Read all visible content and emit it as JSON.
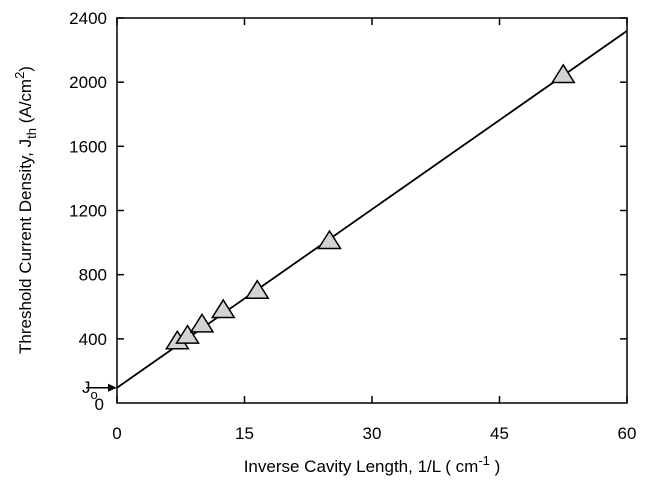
{
  "chart_data": {
    "type": "scatter",
    "title": "",
    "xlabel": "Inverse Cavity Length, 1/L ( cm",
    "xlabel_sup": "-1",
    "xlabel_end": " )",
    "ylabel": "Threshold Current Density, J",
    "ylabel_sub": "th",
    "ylabel_unit": " (A/cm",
    "ylabel_sup": "2",
    "ylabel_end": ")",
    "xlim": [
      0,
      60
    ],
    "ylim": [
      0,
      2400
    ],
    "x_ticks": [
      0,
      15,
      30,
      45,
      60
    ],
    "y_ticks": [
      400,
      800,
      1200,
      1600,
      2000,
      2400
    ],
    "x_tick_labels": [
      "0",
      "15",
      "30",
      "45",
      "60"
    ],
    "y_tick_labels": [
      "400",
      "800",
      "1200",
      "1600",
      "2000",
      "2400"
    ],
    "y_zero_label": "0",
    "grid": false,
    "marker": "triangle",
    "marker_color": "#d3d3d3",
    "series": [
      {
        "x": [
          7.1,
          8.3,
          10.0,
          12.5,
          16.5,
          25.0,
          52.5
        ],
        "y": [
          385,
          420,
          490,
          580,
          700,
          1010,
          2045
        ]
      }
    ],
    "fit_line": {
      "x": [
        0,
        60
      ],
      "y": [
        95,
        2320
      ]
    },
    "intercept_annotation": {
      "label": "J",
      "sub": "o",
      "y": 95
    }
  }
}
